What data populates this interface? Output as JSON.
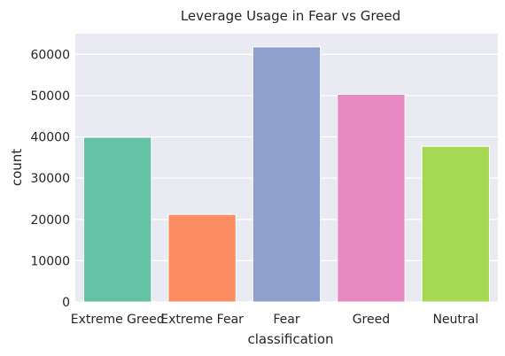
{
  "chart_data": {
    "type": "bar",
    "title": "Leverage Usage in Fear vs Greed",
    "xlabel": "classification",
    "ylabel": "count",
    "categories": [
      "Extreme Greed",
      "Extreme Fear",
      "Fear",
      "Greed",
      "Neutral"
    ],
    "values": [
      39900,
      21200,
      61800,
      50300,
      37700
    ],
    "colors": [
      "#66c2a5",
      "#fc8d62",
      "#8da0cb",
      "#e78ac3",
      "#a6d854"
    ],
    "ylim": [
      0,
      65000
    ],
    "yticks": [
      0,
      10000,
      20000,
      30000,
      40000,
      50000,
      60000
    ],
    "ytick_labels": [
      "0",
      "10000",
      "20000",
      "30000",
      "40000",
      "50000",
      "60000"
    ],
    "grid": true,
    "background": "#eaeaf2"
  }
}
